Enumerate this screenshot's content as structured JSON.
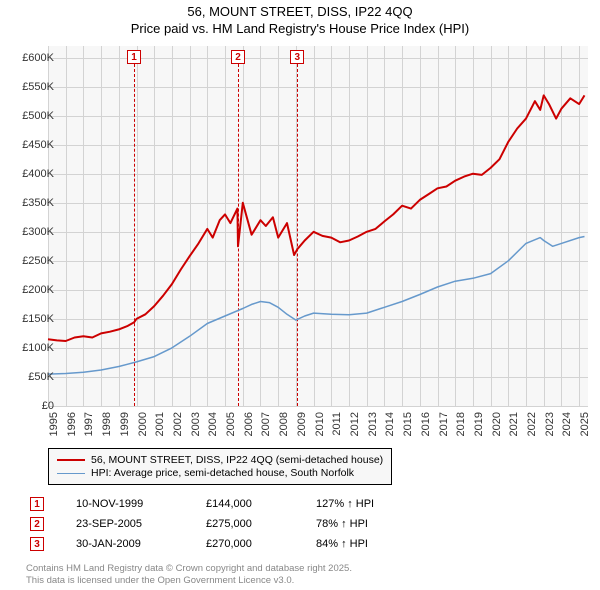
{
  "title_line1": "56, MOUNT STREET, DISS, IP22 4QQ",
  "title_line2": "Price paid vs. HM Land Registry's House Price Index (HPI)",
  "chart": {
    "type": "line",
    "background_color": "#f7f7f7",
    "grid_color": "#d3d3d3",
    "x_min": 1995,
    "x_max": 2025.5,
    "xticks": [
      1995,
      1996,
      1997,
      1998,
      1999,
      2000,
      2001,
      2002,
      2003,
      2004,
      2005,
      2006,
      2007,
      2008,
      2009,
      2010,
      2011,
      2012,
      2013,
      2014,
      2015,
      2016,
      2017,
      2018,
      2019,
      2020,
      2021,
      2022,
      2023,
      2024,
      2025
    ],
    "y_min": 0,
    "y_max": 620000,
    "yticks": [
      0,
      50000,
      100000,
      150000,
      200000,
      250000,
      300000,
      350000,
      400000,
      450000,
      500000,
      550000,
      600000
    ],
    "ytick_labels": [
      "£0",
      "£50K",
      "£100K",
      "£150K",
      "£200K",
      "£250K",
      "£300K",
      "£350K",
      "£400K",
      "£450K",
      "£500K",
      "£550K",
      "£600K"
    ],
    "tick_fontsize": 11,
    "series": [
      {
        "name": "56, MOUNT STREET, DISS, IP22 4QQ (semi-detached house)",
        "color": "#cc0000",
        "line_width": 2,
        "data": [
          [
            1995,
            115000
          ],
          [
            1995.5,
            113000
          ],
          [
            1996,
            112000
          ],
          [
            1996.5,
            118000
          ],
          [
            1997,
            120000
          ],
          [
            1997.5,
            118000
          ],
          [
            1998,
            125000
          ],
          [
            1998.5,
            128000
          ],
          [
            1999,
            132000
          ],
          [
            1999.5,
            138000
          ],
          [
            1999.86,
            144000
          ],
          [
            2000,
            150000
          ],
          [
            2000.5,
            158000
          ],
          [
            2001,
            172000
          ],
          [
            2001.5,
            190000
          ],
          [
            2002,
            210000
          ],
          [
            2002.5,
            235000
          ],
          [
            2003,
            258000
          ],
          [
            2003.5,
            280000
          ],
          [
            2004,
            305000
          ],
          [
            2004.3,
            290000
          ],
          [
            2004.7,
            320000
          ],
          [
            2005,
            330000
          ],
          [
            2005.3,
            315000
          ],
          [
            2005.7,
            340000
          ],
          [
            2005.73,
            275000
          ],
          [
            2006,
            350000
          ],
          [
            2006.5,
            295000
          ],
          [
            2007,
            320000
          ],
          [
            2007.3,
            310000
          ],
          [
            2007.7,
            325000
          ],
          [
            2008,
            290000
          ],
          [
            2008.5,
            315000
          ],
          [
            2008.9,
            260000
          ],
          [
            2009.08,
            270000
          ],
          [
            2009.5,
            285000
          ],
          [
            2010,
            300000
          ],
          [
            2010.5,
            293000
          ],
          [
            2011,
            290000
          ],
          [
            2011.5,
            282000
          ],
          [
            2012,
            285000
          ],
          [
            2012.5,
            292000
          ],
          [
            2013,
            300000
          ],
          [
            2013.5,
            305000
          ],
          [
            2014,
            318000
          ],
          [
            2014.5,
            330000
          ],
          [
            2015,
            345000
          ],
          [
            2015.5,
            340000
          ],
          [
            2016,
            355000
          ],
          [
            2016.5,
            365000
          ],
          [
            2017,
            375000
          ],
          [
            2017.5,
            378000
          ],
          [
            2018,
            388000
          ],
          [
            2018.5,
            395000
          ],
          [
            2019,
            400000
          ],
          [
            2019.5,
            398000
          ],
          [
            2020,
            410000
          ],
          [
            2020.5,
            425000
          ],
          [
            2021,
            455000
          ],
          [
            2021.5,
            478000
          ],
          [
            2022,
            495000
          ],
          [
            2022.5,
            525000
          ],
          [
            2022.8,
            510000
          ],
          [
            2023,
            535000
          ],
          [
            2023.3,
            520000
          ],
          [
            2023.7,
            495000
          ],
          [
            2024,
            512000
          ],
          [
            2024.5,
            530000
          ],
          [
            2025,
            520000
          ],
          [
            2025.3,
            535000
          ]
        ]
      },
      {
        "name": "HPI: Average price, semi-detached house, South Norfolk",
        "color": "#6699cc",
        "line_width": 1.5,
        "data": [
          [
            1995,
            55000
          ],
          [
            1996,
            56000
          ],
          [
            1997,
            58000
          ],
          [
            1998,
            62000
          ],
          [
            1999,
            68000
          ],
          [
            2000,
            76000
          ],
          [
            2001,
            85000
          ],
          [
            2002,
            100000
          ],
          [
            2003,
            120000
          ],
          [
            2004,
            142000
          ],
          [
            2005,
            155000
          ],
          [
            2006,
            168000
          ],
          [
            2006.5,
            175000
          ],
          [
            2007,
            180000
          ],
          [
            2007.5,
            178000
          ],
          [
            2008,
            170000
          ],
          [
            2008.5,
            158000
          ],
          [
            2009,
            148000
          ],
          [
            2009.5,
            155000
          ],
          [
            2010,
            160000
          ],
          [
            2011,
            158000
          ],
          [
            2012,
            157000
          ],
          [
            2013,
            160000
          ],
          [
            2014,
            170000
          ],
          [
            2015,
            180000
          ],
          [
            2016,
            192000
          ],
          [
            2017,
            205000
          ],
          [
            2018,
            215000
          ],
          [
            2019,
            220000
          ],
          [
            2020,
            228000
          ],
          [
            2021,
            250000
          ],
          [
            2022,
            280000
          ],
          [
            2022.8,
            290000
          ],
          [
            2023,
            285000
          ],
          [
            2023.5,
            275000
          ],
          [
            2024,
            280000
          ],
          [
            2025,
            290000
          ],
          [
            2025.3,
            292000
          ]
        ]
      }
    ],
    "sale_markers": [
      {
        "n": "1",
        "x": 1999.86,
        "label_y": 60
      },
      {
        "n": "2",
        "x": 2005.73,
        "label_y": 60
      },
      {
        "n": "3",
        "x": 2009.08,
        "label_y": 60
      }
    ]
  },
  "legend": {
    "items": [
      {
        "color": "#cc0000",
        "width": 2,
        "label": "56, MOUNT STREET, DISS, IP22 4QQ (semi-detached house)"
      },
      {
        "color": "#6699cc",
        "width": 1.5,
        "label": "HPI: Average price, semi-detached house, South Norfolk"
      }
    ]
  },
  "sales": [
    {
      "n": "1",
      "date": "10-NOV-1999",
      "price": "£144,000",
      "hpi": "127% ↑ HPI"
    },
    {
      "n": "2",
      "date": "23-SEP-2005",
      "price": "£275,000",
      "hpi": "78% ↑ HPI"
    },
    {
      "n": "3",
      "date": "30-JAN-2009",
      "price": "£270,000",
      "hpi": "84% ↑ HPI"
    }
  ],
  "footer_line1": "Contains HM Land Registry data © Crown copyright and database right 2025.",
  "footer_line2": "This data is licensed under the Open Government Licence v3.0."
}
